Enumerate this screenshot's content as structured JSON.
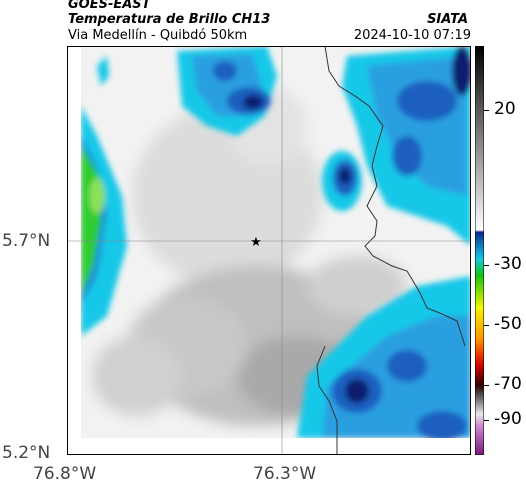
{
  "header": {
    "satellite": "GOES-EAST",
    "product": "Temperatura de Brillo CH13",
    "route": "Via Medellín - Quibdó 50km",
    "organization": "SIATA",
    "datetime": "2024-10-10 07:19"
  },
  "axes": {
    "lat_labels": [
      "5.7°N",
      "5.2°N"
    ],
    "lon_labels": [
      "76.8°W",
      "76.3°W"
    ]
  },
  "colorbar": {
    "ticks": [
      "20",
      "-30",
      "-50",
      "-70",
      "-90"
    ]
  },
  "colors": {
    "background_cloud": "#d8d8d8",
    "cyan": "#18c8e8",
    "blue": "#1a5fbf",
    "navy": "#0a1f6e",
    "green": "#2ecc2e"
  },
  "marker": {
    "symbol": "★"
  }
}
